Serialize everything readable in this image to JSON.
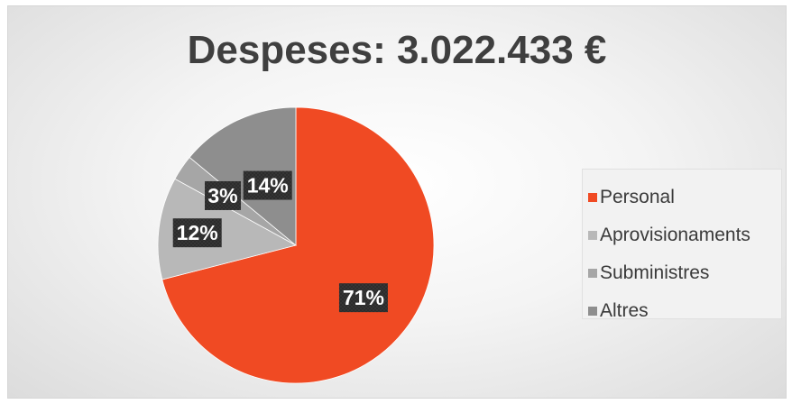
{
  "chart_data": {
    "type": "pie",
    "title": "Despeses: 3.022.433 €",
    "categories": [
      "Personal",
      "Aprovisionaments",
      "Subministres",
      "Altres"
    ],
    "values": [
      71,
      12,
      3,
      14
    ],
    "labels": [
      "71%",
      "12%",
      "3%",
      "14%"
    ],
    "colors": [
      "#f04a23",
      "#b8b8b8",
      "#a6a6a6",
      "#8e8e8e"
    ],
    "legend_position": "right"
  }
}
